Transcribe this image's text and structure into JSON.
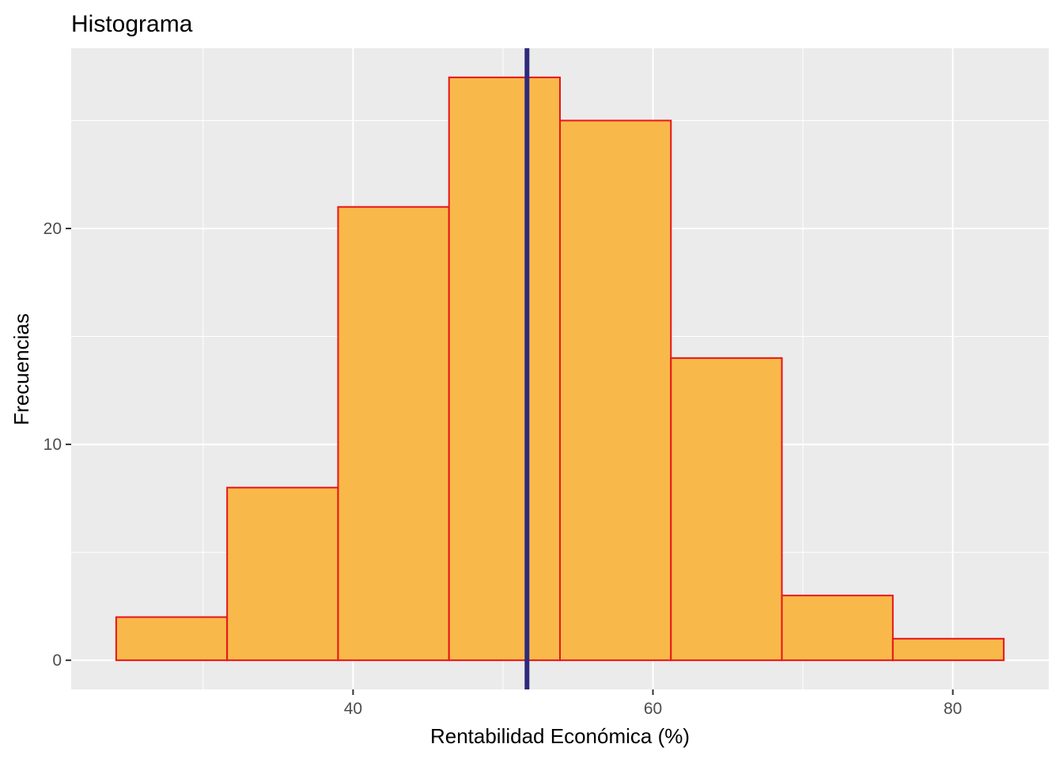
{
  "chart_data": {
    "type": "bar",
    "subtype": "histogram",
    "title": "Histograma",
    "xlabel": "Rentabilidad Económica (%)",
    "ylabel": "Frecuencias",
    "bins": [
      {
        "x0": 24.2,
        "x1": 31.6,
        "count": 2
      },
      {
        "x0": 31.6,
        "x1": 39.0,
        "count": 8
      },
      {
        "x0": 39.0,
        "x1": 46.4,
        "count": 21
      },
      {
        "x0": 46.4,
        "x1": 53.8,
        "count": 27
      },
      {
        "x0": 53.8,
        "x1": 61.2,
        "count": 25
      },
      {
        "x0": 61.2,
        "x1": 68.6,
        "count": 14
      },
      {
        "x0": 68.6,
        "x1": 76.0,
        "count": 3
      },
      {
        "x0": 76.0,
        "x1": 83.4,
        "count": 1
      }
    ],
    "mean_line": 51.6,
    "xlim": [
      21.2,
      86.4
    ],
    "ylim": [
      -1.35,
      28.35
    ],
    "xticks": [
      40,
      60,
      80
    ],
    "xticks_minor": [
      30,
      50,
      70
    ],
    "yticks": [
      0,
      10,
      20
    ],
    "yticks_minor": [
      5,
      15,
      25
    ],
    "grid": true,
    "colors": {
      "panel_bg": "#ebebeb",
      "grid": "#ffffff",
      "bar_fill": "#f9b94a",
      "bar_stroke": "#e8141a",
      "mean_line": "#2e2a7b",
      "tick_label": "#4d4d4d",
      "tick_mark": "#333333"
    }
  }
}
